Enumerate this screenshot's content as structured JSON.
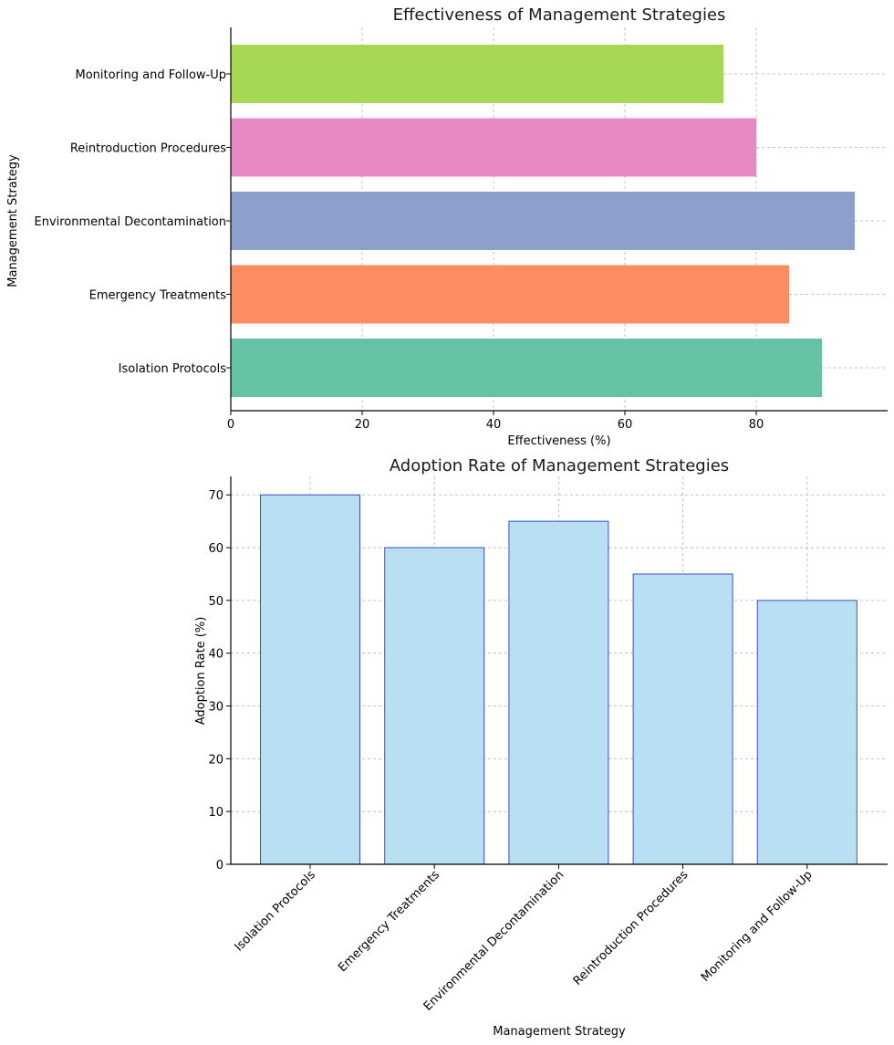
{
  "chart_data": [
    {
      "type": "bar",
      "orientation": "horizontal",
      "title": "Effectiveness of Management Strategies",
      "xlabel": "Effectiveness (%)",
      "ylabel": "Management Strategy",
      "categories": [
        "Isolation Protocols",
        "Emergency Treatments",
        "Environmental Decontamination",
        "Reintroduction Procedures",
        "Monitoring and Follow-Up"
      ],
      "values": [
        90,
        85,
        95,
        80,
        75
      ],
      "colors": [
        "#66c2a5",
        "#fc8d62",
        "#8da0cb",
        "#e78ac3",
        "#a6d854"
      ],
      "xlim": [
        0,
        100
      ],
      "xticks": [
        "0",
        "20",
        "40",
        "60",
        "80"
      ],
      "grid": true
    },
    {
      "type": "bar",
      "orientation": "vertical",
      "title": "Adoption Rate of Management Strategies",
      "xlabel": "Management Strategy",
      "ylabel": "Adoption Rate (%)",
      "categories": [
        "Isolation Protocols",
        "Emergency Treatments",
        "Environmental Decontamination",
        "Reintroduction Procedures",
        "Monitoring and Follow-Up"
      ],
      "values": [
        70,
        60,
        65,
        55,
        50
      ],
      "bar_color": "#b9e0f2",
      "edge_color": "#3b4fc4",
      "ylim": [
        0,
        73.5
      ],
      "yticks": [
        "0",
        "10",
        "20",
        "30",
        "40",
        "50",
        "60",
        "70"
      ],
      "grid": true
    }
  ]
}
